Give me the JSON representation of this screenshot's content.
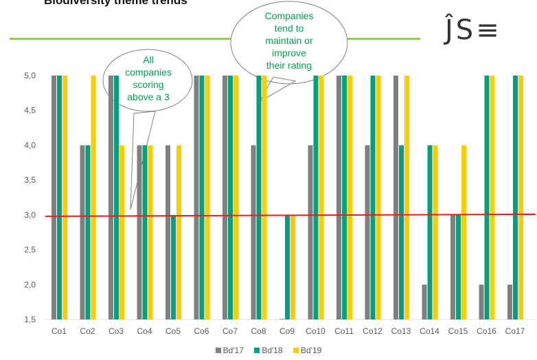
{
  "title": "Biodiversity theme trends",
  "logo_text": "ĴS≡",
  "callouts": {
    "left": [
      "All",
      "companies",
      "scoring",
      "above a 3"
    ],
    "right": [
      "Companies",
      "tend to",
      "maintain or",
      "improve",
      "their rating"
    ]
  },
  "colors": {
    "series": [
      "#808080",
      "#00a080",
      "#ffcc00"
    ],
    "reference_line": "#e02020",
    "callout_text": "#00a050",
    "header_rule": "#92d050"
  },
  "chart_data": {
    "type": "bar",
    "categories": [
      "Co1",
      "Co2",
      "Co3",
      "Co4",
      "Co5",
      "Co6",
      "Co7",
      "Co8",
      "Co9",
      "Co10",
      "Co11",
      "Co12",
      "Co13",
      "Co14",
      "Co15",
      "Co16",
      "Co17"
    ],
    "series": [
      {
        "name": "Bd'17",
        "values": [
          5,
          4,
          5,
          4,
          4,
          5,
          5,
          4,
          1.5,
          4,
          5,
          4,
          5,
          2,
          3,
          2,
          2
        ]
      },
      {
        "name": "Bd'18",
        "values": [
          5,
          4,
          5,
          4,
          3,
          5,
          5,
          5,
          3,
          5,
          5,
          5,
          4,
          4,
          3,
          5,
          5
        ]
      },
      {
        "name": "Bd'19",
        "values": [
          5,
          5,
          4,
          4,
          4,
          5,
          5,
          5,
          3,
          5,
          5,
          5,
          5,
          4,
          4,
          5,
          5
        ]
      }
    ],
    "ylim": [
      1.5,
      5.0
    ],
    "yticks": [
      "1,5",
      "2,0",
      "2,5",
      "3,0",
      "3,5",
      "4,0",
      "4,5",
      "5,0"
    ],
    "reference_line": 3.0,
    "grid": false,
    "legend_position": "bottom"
  }
}
